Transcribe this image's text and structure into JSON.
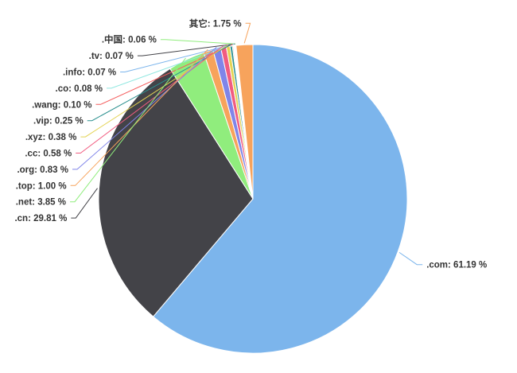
{
  "chart_data": {
    "type": "pie",
    "title": "",
    "legend": "none",
    "background": "#ffffff",
    "label_color": "#333333",
    "value_unit": "%",
    "slices": [
      {
        "label": ".com",
        "value": 61.19,
        "display": ".com: 61.19 %",
        "color": "#7cb5ec"
      },
      {
        "label": ".cn",
        "value": 29.81,
        "display": ".cn: 29.81 %",
        "color": "#434348"
      },
      {
        "label": ".net",
        "value": 3.85,
        "display": ".net: 3.85 %",
        "color": "#90ed7d"
      },
      {
        "label": ".top",
        "value": 1.0,
        "display": ".top: 1.00 %",
        "color": "#f7a35c"
      },
      {
        "label": ".org",
        "value": 0.83,
        "display": ".org: 0.83 %",
        "color": "#8085e9"
      },
      {
        "label": ".cc",
        "value": 0.58,
        "display": ".cc: 0.58 %",
        "color": "#f15c80"
      },
      {
        "label": ".xyz",
        "value": 0.38,
        "display": ".xyz: 0.38 %",
        "color": "#e4d354"
      },
      {
        "label": ".vip",
        "value": 0.25,
        "display": ".vip: 0.25 %",
        "color": "#2b908f"
      },
      {
        "label": ".wang",
        "value": 0.1,
        "display": ".wang: 0.10 %",
        "color": "#f45b5b"
      },
      {
        "label": ".co",
        "value": 0.08,
        "display": ".co: 0.08 %",
        "color": "#91e8e1"
      },
      {
        "label": ".info",
        "value": 0.07,
        "display": ".info: 0.07 %",
        "color": "#7cb5ec"
      },
      {
        "label": ".tv",
        "value": 0.07,
        "display": ".tv: 0.07 %",
        "color": "#434348"
      },
      {
        "label": ".中国",
        "value": 0.06,
        "display": ".中国: 0.06 %",
        "color": "#90ed7d"
      },
      {
        "label": "其它",
        "value": 1.75,
        "display": "其它: 1.75 %",
        "color": "#f7a35c"
      }
    ]
  }
}
